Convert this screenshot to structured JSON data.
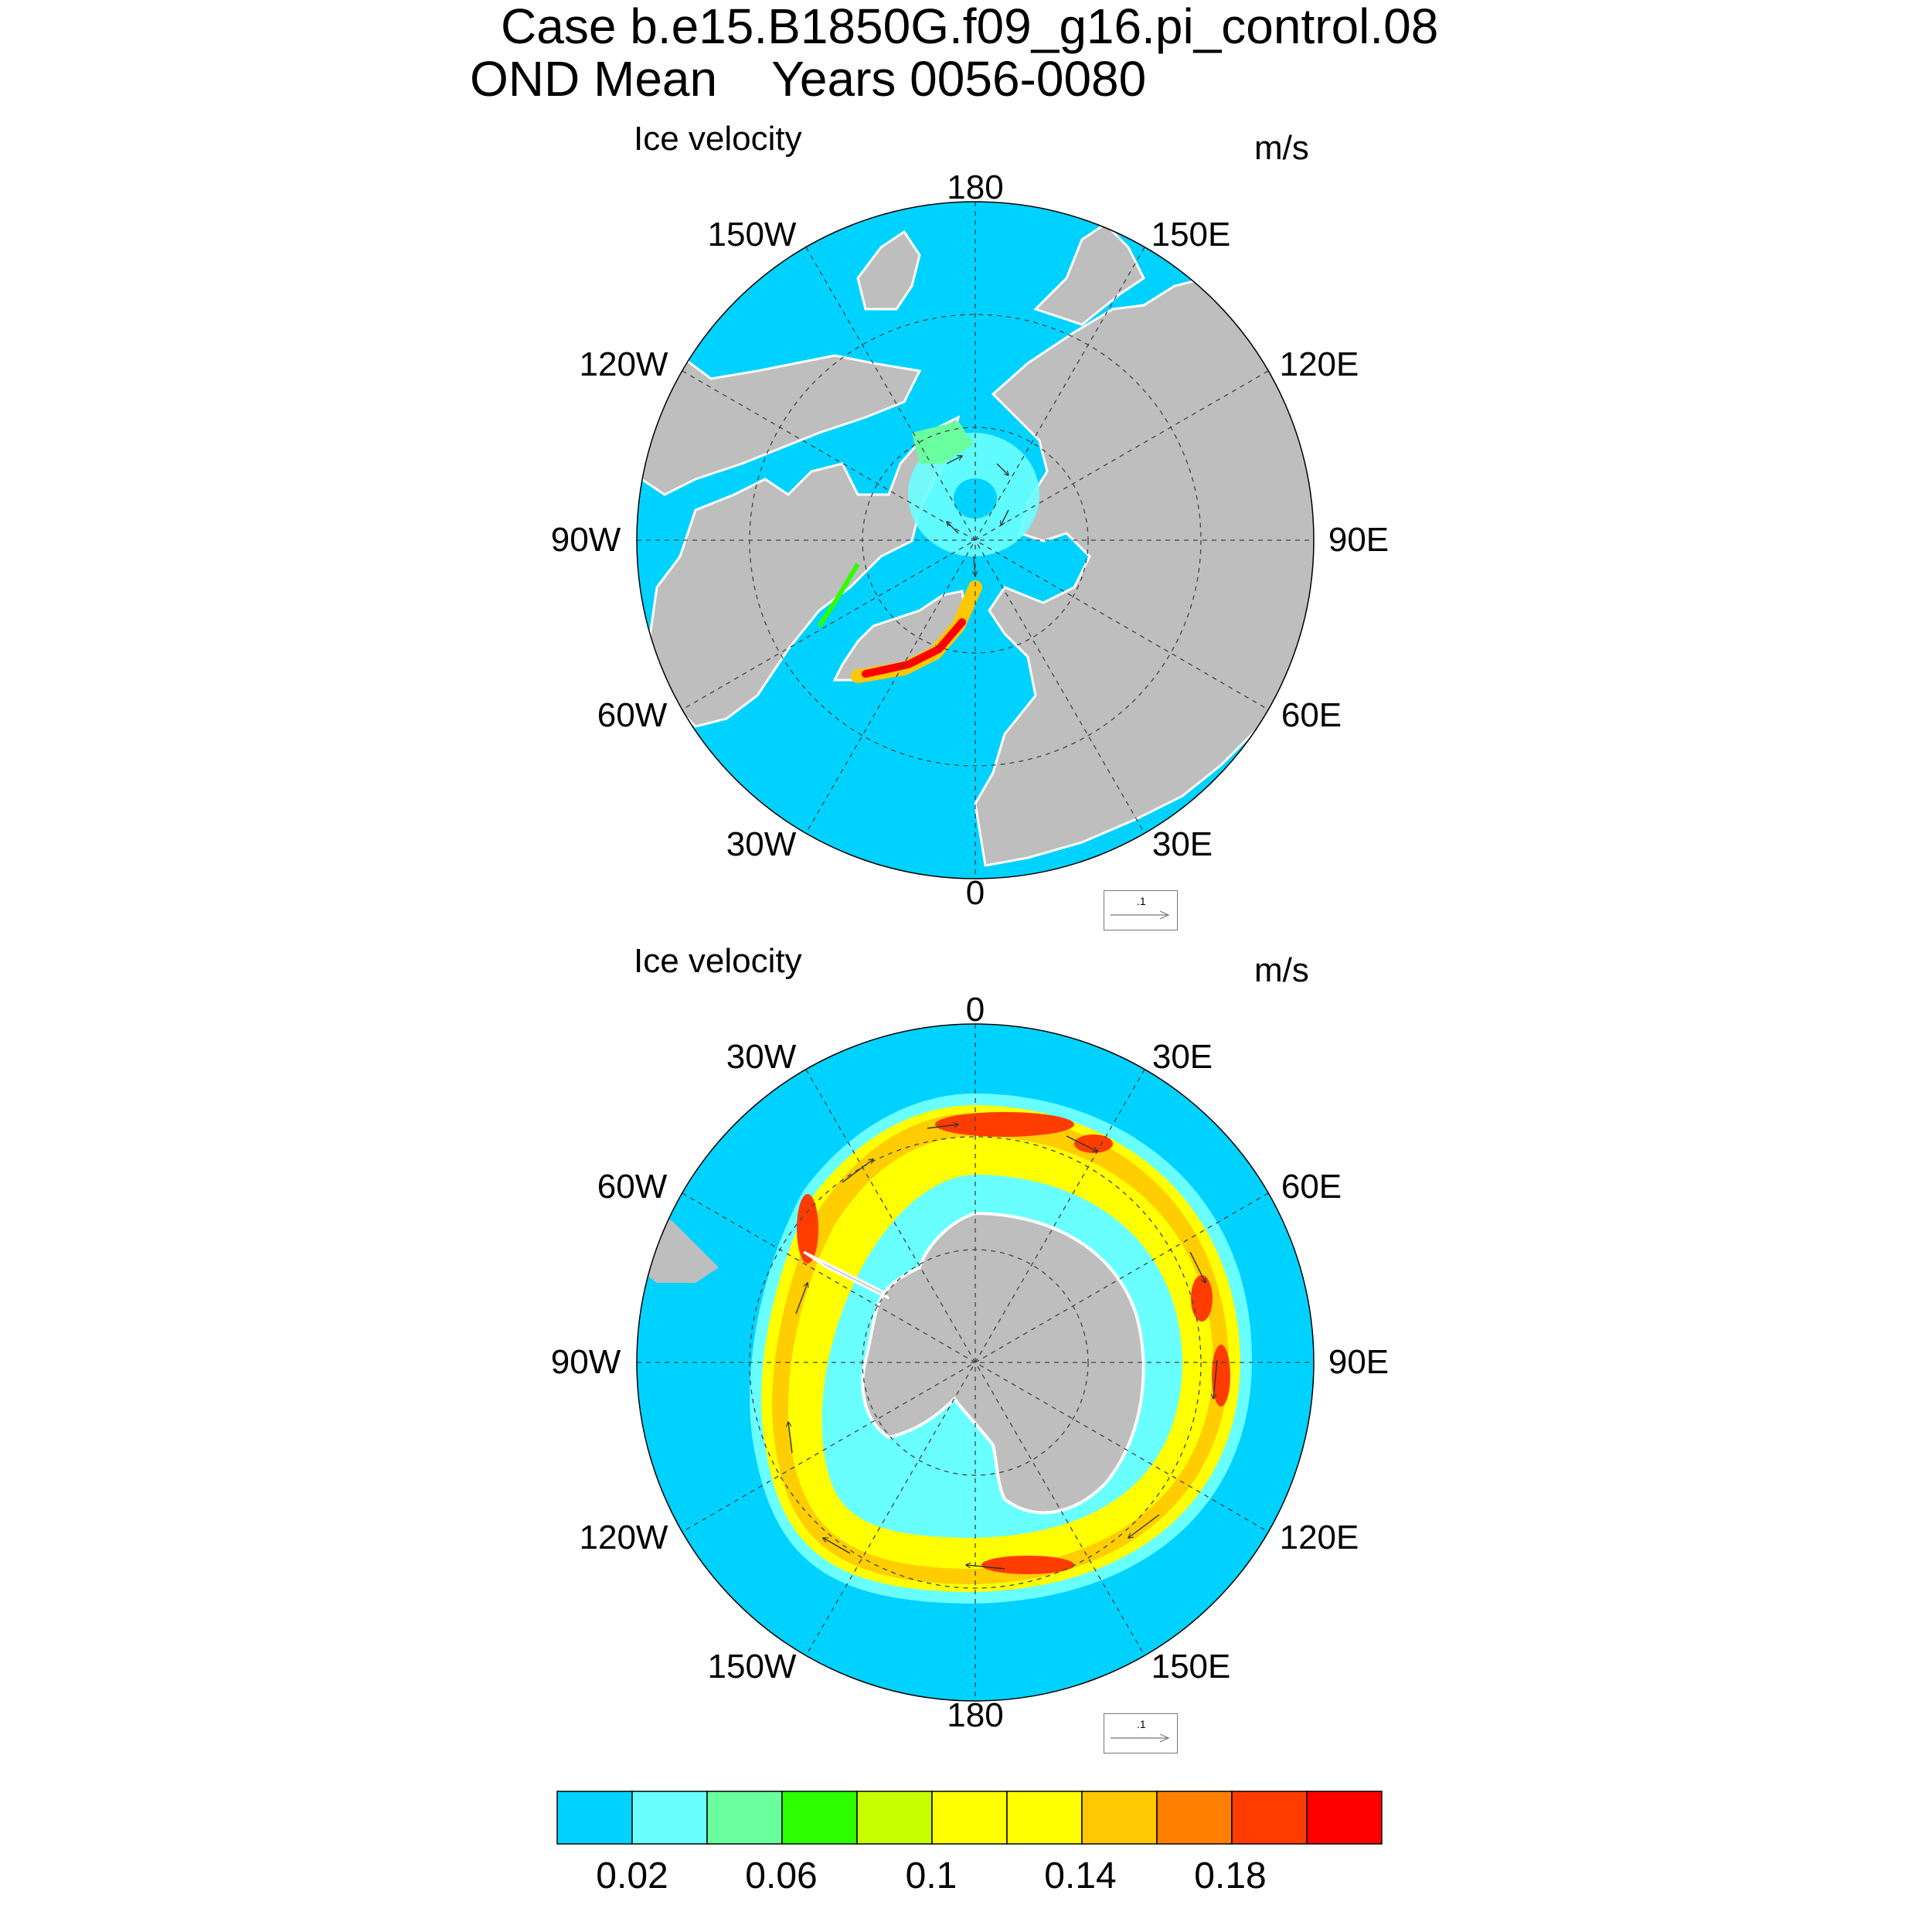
{
  "title": {
    "line1": "Case b.e15.B1850G.f09_g16.pi_control.08",
    "line2": "OND Mean    Years 0056-0080"
  },
  "panels": [
    {
      "id": "north",
      "title": "Ice velocity",
      "units": "m/s",
      "lon_labels": [
        "180",
        "150E",
        "120E",
        "90E",
        "60E",
        "30E",
        "0",
        "30W",
        "60W",
        "90W",
        "120W",
        "150W"
      ],
      "ref_vector_label": ".1"
    },
    {
      "id": "south",
      "title": "Ice velocity",
      "units": "m/s",
      "lon_labels": [
        "0",
        "30E",
        "60E",
        "90E",
        "120E",
        "150E",
        "180",
        "150W",
        "120W",
        "90W",
        "60W",
        "30W"
      ],
      "ref_vector_label": ".1"
    }
  ],
  "colorbar": {
    "colors": [
      "#00d2ff",
      "#6affff",
      "#6aff9e",
      "#2eff00",
      "#c8ff00",
      "#ffff00",
      "#ffff00",
      "#ffc800",
      "#ff8000",
      "#ff3c00",
      "#ff0000"
    ],
    "labels": [
      "0.02",
      "0.06",
      "0.1",
      "0.14",
      "0.18"
    ]
  },
  "colors": {
    "ocean": "#00d2ff",
    "land": "#bebebe",
    "ice_edge": "#ffffff"
  }
}
